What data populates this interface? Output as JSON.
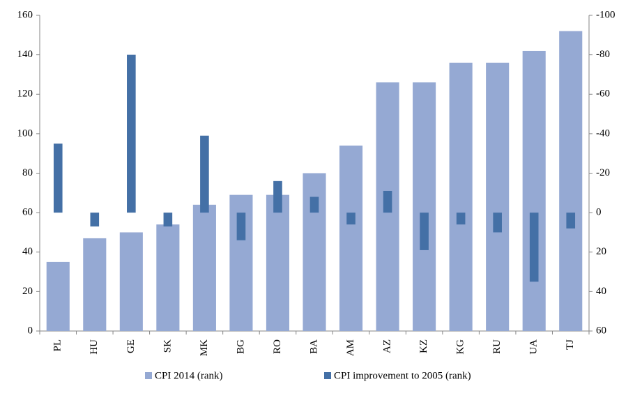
{
  "chart_data": {
    "type": "bar",
    "categories": [
      "PL",
      "HU",
      "GE",
      "SK",
      "MK",
      "BG",
      "RO",
      "BA",
      "AM",
      "AZ",
      "KZ",
      "KG",
      "RU",
      "UA",
      "TJ"
    ],
    "series": [
      {
        "name": "CPI 2014 (rank)",
        "color": "#95a9d3",
        "values": [
          35,
          47,
          50,
          54,
          64,
          69,
          69,
          80,
          94,
          126,
          126,
          136,
          136,
          142,
          152
        ]
      },
      {
        "name": "CPI improvement to 2005 (rank)",
        "color": "#4470a6",
        "axis": "y2",
        "values": [
          -35,
          7,
          -80,
          7,
          -39,
          14,
          -16,
          -8,
          6,
          -11,
          19,
          6,
          10,
          35,
          8
        ]
      }
    ],
    "ylim": [
      0,
      160
    ],
    "yticks": [
      0,
      20,
      40,
      60,
      80,
      100,
      120,
      140,
      160
    ],
    "y2lim": [
      60,
      -100
    ],
    "y2ticks": [
      60,
      40,
      20,
      0,
      -20,
      -40,
      -60,
      -80,
      -100
    ],
    "legend": "bottom"
  }
}
